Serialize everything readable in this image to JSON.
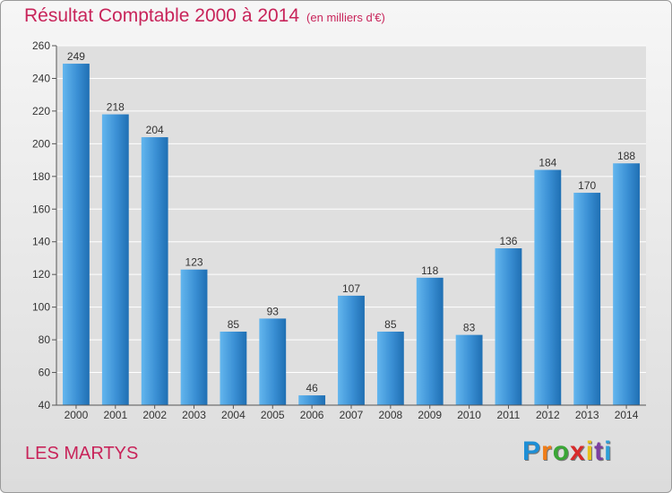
{
  "title": "Résultat Comptable 2000 à 2014",
  "title_unit": "(en milliers d'€)",
  "place_name": "LES MARTYS",
  "logo": [
    "P",
    "r",
    "o",
    "x",
    "i",
    "t",
    "i"
  ],
  "logo_colors": [
    "#1e8fd6",
    "#f07d18",
    "#3aa636",
    "#d82a2a",
    "#e8c21a",
    "#7c3fa0",
    "#2d9fd8"
  ],
  "colors": {
    "bar": "#3a8fd4",
    "bar_light": "#63b6ee",
    "bar_dark": "#1f6fb3",
    "title": "#c8245a",
    "plot_bg": "#dfdfdf"
  },
  "chart_data": {
    "type": "bar",
    "title": "Résultat Comptable 2000 à 2014",
    "ylabel": "",
    "xlabel": "",
    "categories": [
      "2000",
      "2001",
      "2002",
      "2003",
      "2004",
      "2005",
      "2006",
      "2007",
      "2008",
      "2009",
      "2010",
      "2011",
      "2012",
      "2013",
      "2014"
    ],
    "values": [
      249,
      218,
      204,
      123,
      85,
      93,
      46,
      107,
      85,
      118,
      83,
      136,
      184,
      170,
      188
    ],
    "ylim": [
      40,
      260
    ],
    "yticks": [
      40,
      60,
      80,
      100,
      120,
      140,
      160,
      180,
      200,
      220,
      240,
      260
    ],
    "grid": true
  }
}
